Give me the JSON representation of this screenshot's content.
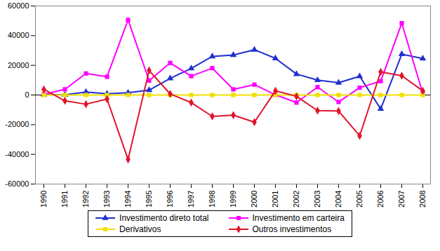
{
  "chart_data": {
    "type": "line",
    "categories": [
      "1990",
      "1991",
      "1992",
      "1993",
      "1994",
      "1995",
      "1996",
      "1997",
      "1998",
      "1999",
      "2000",
      "2001",
      "2002",
      "2003",
      "2004",
      "2005",
      "2006",
      "2007",
      "2008"
    ],
    "series": [
      {
        "name": "Investimento direto total",
        "color": "#1f2fd0",
        "marker": "triangle",
        "values": [
          300,
          100,
          2000,
          800,
          1500,
          3300,
          11200,
          17900,
          26000,
          26900,
          30500,
          24700,
          14100,
          10000,
          8300,
          12600,
          -9400,
          27500,
          24600
        ]
      },
      {
        "name": "Investimento em carteira",
        "color": "#ff00ff",
        "marker": "square",
        "values": [
          500,
          3800,
          14500,
          12300,
          50600,
          9700,
          21600,
          12700,
          18100,
          3800,
          7000,
          100,
          -5100,
          5300,
          -4700,
          4900,
          9300,
          48400,
          1100
        ]
      },
      {
        "name": "Derivativos",
        "color": "#f0e000",
        "marker": "square",
        "values": [
          0,
          0,
          0,
          0,
          0,
          0,
          0,
          0,
          0,
          0,
          0,
          0,
          0,
          0,
          0,
          0,
          0,
          0,
          0
        ]
      },
      {
        "name": "Outros investimentos",
        "color": "#e0142a",
        "marker": "diamond",
        "values": [
          3800,
          -3900,
          -6200,
          -2700,
          -43400,
          16500,
          700,
          -5100,
          -14400,
          -13600,
          -18300,
          2800,
          -900,
          -10500,
          -10800,
          -27500,
          15600,
          13000,
          2800
        ]
      }
    ],
    "ylim": [
      -60000,
      60000
    ],
    "yticks": [
      -60000,
      -40000,
      -20000,
      0,
      20000,
      40000,
      60000
    ],
    "legend": "bottom"
  }
}
